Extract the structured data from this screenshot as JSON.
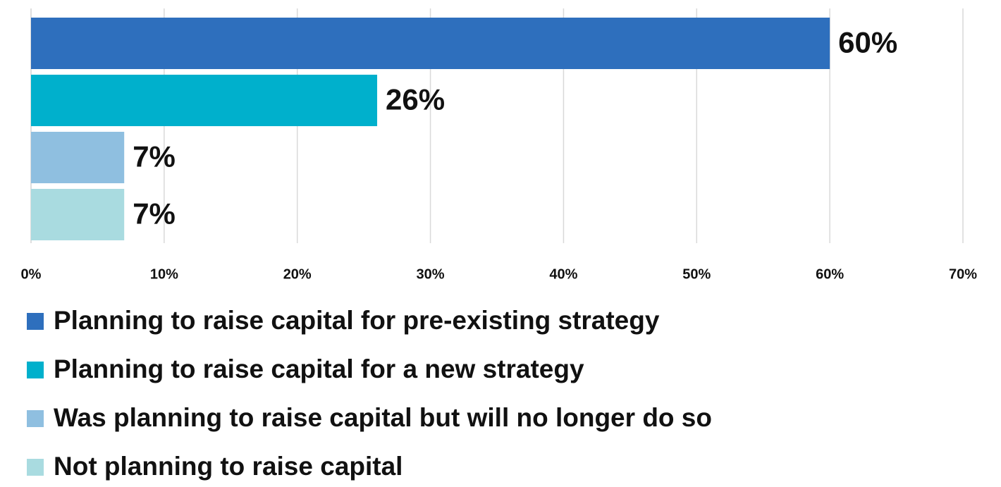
{
  "chart_data": {
    "type": "bar",
    "orientation": "horizontal",
    "series": [
      {
        "name": "Planning to raise capital for pre-existing strategy",
        "color": "#2e6fbd",
        "values": [
          60
        ],
        "value_labels": [
          "60%"
        ]
      },
      {
        "name": "Planning to raise capital for a new strategy",
        "color": "#00b0cc",
        "values": [
          26
        ],
        "value_labels": [
          "26%"
        ]
      },
      {
        "name": "Was planning to raise capital but will no longer do so",
        "color": "#8fbfe0",
        "values": [
          7
        ],
        "value_labels": [
          "7%"
        ]
      },
      {
        "name": "Not planning to raise capital",
        "color": "#a9dbe0",
        "values": [
          7
        ],
        "value_labels": [
          "7%"
        ]
      }
    ],
    "xlim": [
      0,
      70
    ],
    "xticks": [
      {
        "value": 0,
        "label": "0%"
      },
      {
        "value": 10,
        "label": "10%"
      },
      {
        "value": 20,
        "label": "20%"
      },
      {
        "value": 30,
        "label": "30%"
      },
      {
        "value": 40,
        "label": "40%"
      },
      {
        "value": 50,
        "label": "50%"
      },
      {
        "value": 60,
        "label": "60%"
      },
      {
        "value": 70,
        "label": "70%"
      }
    ],
    "grid": true,
    "legend": "bottom"
  }
}
